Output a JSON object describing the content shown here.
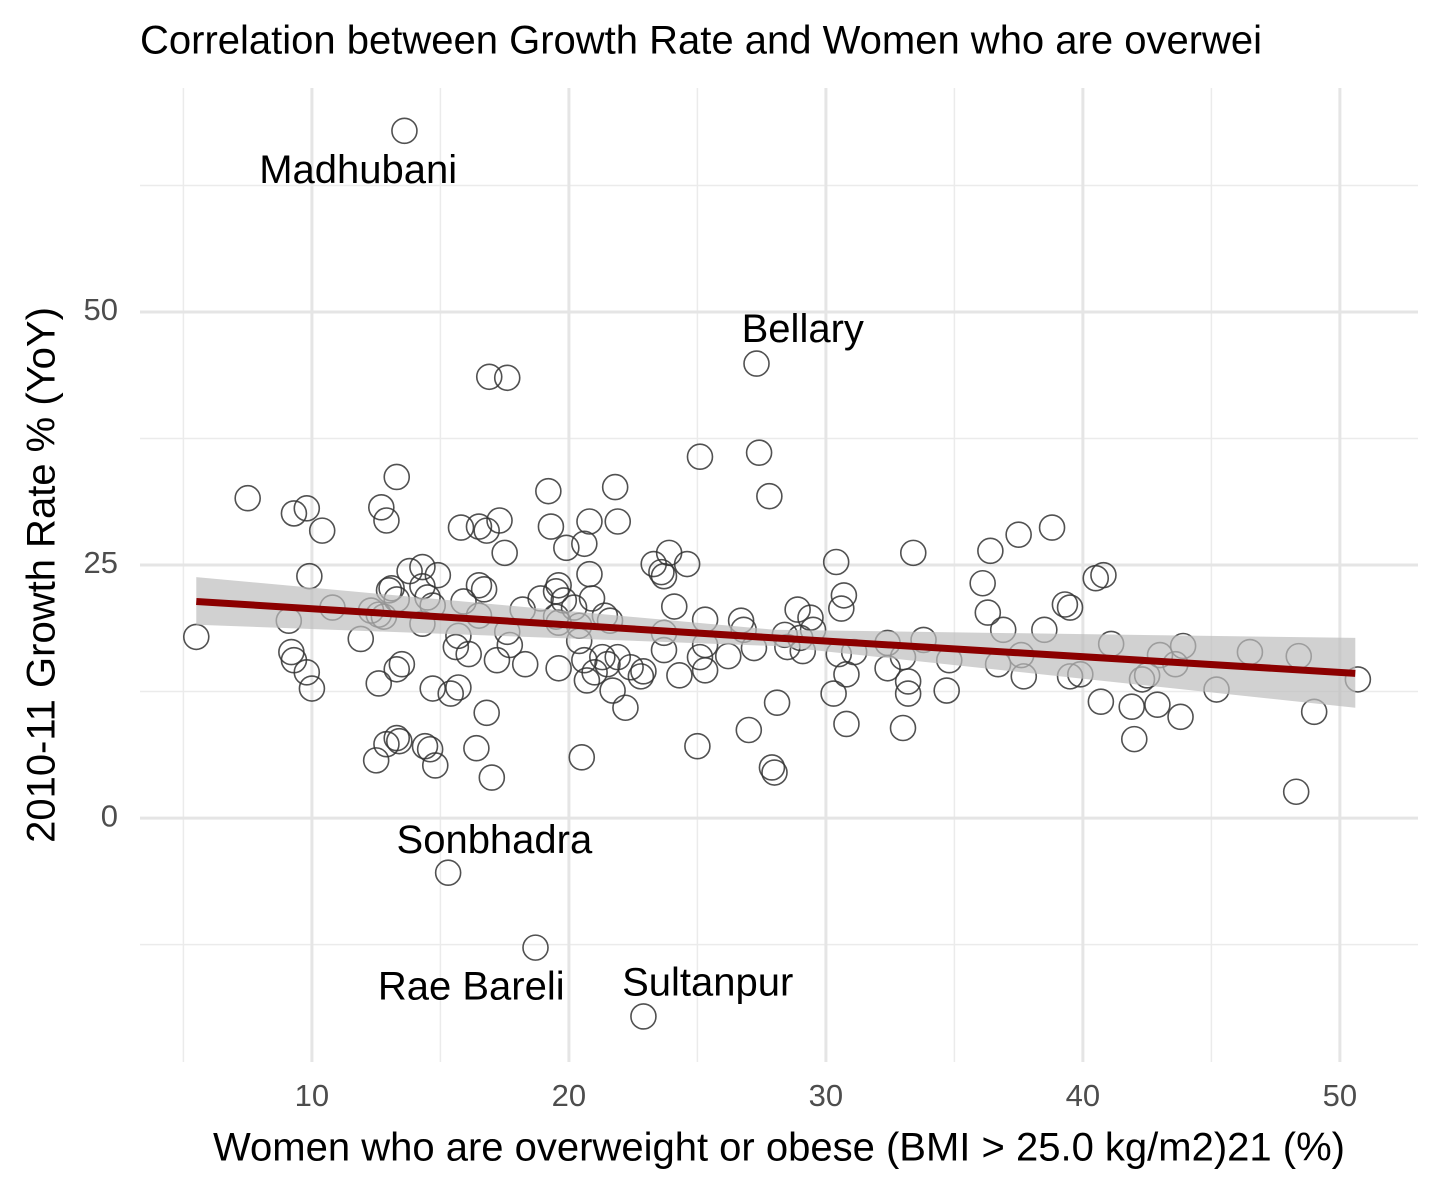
{
  "chart_data": {
    "type": "scatter",
    "title": "Correlation between Growth Rate and Women who are overwei",
    "x_label": "Women who are overweight or obese (BMI > 25.0 kg/m2)21 (%)",
    "y_label": "2010-11 Growth Rate % (YoY)",
    "xlim": [
      3.31,
      53.04
    ],
    "ylim": [
      -24.1,
      72.13
    ],
    "xticks": [
      10,
      20,
      30,
      40,
      50
    ],
    "yticks": [
      0,
      25,
      50
    ],
    "grid": true,
    "minor_grid": true,
    "point_color": "#333333",
    "trend_color": "#8b0000",
    "band_color": "#bebebe",
    "x": [
      13.6,
      16.9,
      17.6,
      27.3,
      25.1,
      27.4,
      27.8,
      7.5,
      9.3,
      9.8,
      10.4,
      12.7,
      12.9,
      13.3,
      19.2,
      21.8,
      19.3,
      20.8,
      21.9,
      15.8,
      16.5,
      16.8,
      17.3,
      17.5,
      19.9,
      20.6,
      30.4,
      33.4,
      36.4,
      37.5,
      38.8,
      36.1,
      36.3,
      36.9,
      40.5,
      40.8,
      39.3,
      39.5,
      38.5,
      41.1,
      37.6,
      37.7,
      36.7,
      39.5,
      39.9,
      40.7,
      41.9,
      42.0,
      42.3,
      42.5,
      42.9,
      43.0,
      43.6,
      43.9,
      43.8,
      45.2,
      46.5,
      48.4,
      48.3,
      49.0,
      50.7,
      5.5,
      9.1,
      9.2,
      9.3,
      9.8,
      10.0,
      9.9,
      10.8,
      11.9,
      12.3,
      12.6,
      12.8,
      13.0,
      13.1,
      13.3,
      12.6,
      13.5,
      13.3,
      12.5,
      12.9,
      13.3,
      13.4,
      14.4,
      14.6,
      14.8,
      14.7,
      15.4,
      15.7,
      13.8,
      14.3,
      14.9,
      14.3,
      14.5,
      14.7,
      14.3,
      15.9,
      16.5,
      16.7,
      15.7,
      15.6,
      16.1,
      16.5,
      17.2,
      17.6,
      17.7,
      18.2,
      18.3,
      16.8,
      16.4,
      17.0,
      15.3,
      18.7,
      22.9,
      18.9,
      19.5,
      19.6,
      19.8,
      20.2,
      19.5,
      19.6,
      19.6,
      20.4,
      20.8,
      20.9,
      21.4,
      21.6,
      20.4,
      20.6,
      20.5,
      20.7,
      21.0,
      21.3,
      21.5,
      21.7,
      21.9,
      22.2,
      22.4,
      22.8,
      22.9,
      23.3,
      23.6,
      23.9,
      23.7,
      24.6,
      24.1,
      23.7,
      23.7,
      24.3,
      25.3,
      25.3,
      25.1,
      25.3,
      25.0,
      26.2,
      26.7,
      26.8,
      27.2,
      27.0,
      28.1,
      27.9,
      28.0,
      28.4,
      28.5,
      29.0,
      28.9,
      29.1,
      29.4,
      29.5,
      30.3,
      30.6,
      30.7,
      30.5,
      30.8,
      30.8,
      31.1,
      32.4,
      32.4,
      33.0,
      33.2,
      33.2,
      33.0,
      33.8,
      34.8,
      34.7
    ],
    "y": [
      67.9,
      43.6,
      43.5,
      44.9,
      35.7,
      36.1,
      31.8,
      31.6,
      30.1,
      30.6,
      28.4,
      30.7,
      29.4,
      33.7,
      32.3,
      32.7,
      28.8,
      29.3,
      29.3,
      28.7,
      28.8,
      28.4,
      29.4,
      26.2,
      26.7,
      27.1,
      25.3,
      26.2,
      26.4,
      28.0,
      28.7,
      23.2,
      20.3,
      18.6,
      23.7,
      24.0,
      21.1,
      20.8,
      18.6,
      17.2,
      16.1,
      14.0,
      15.2,
      14.0,
      14.2,
      11.5,
      11.0,
      7.8,
      13.7,
      14.1,
      11.2,
      16.1,
      15.2,
      17.0,
      10.0,
      12.7,
      16.4,
      16.0,
      2.6,
      10.5,
      13.7,
      17.9,
      19.5,
      16.4,
      15.6,
      14.4,
      12.8,
      23.9,
      20.8,
      17.7,
      20.5,
      20.1,
      19.9,
      22.5,
      22.7,
      21.6,
      13.3,
      15.2,
      14.7,
      5.7,
      7.3,
      7.9,
      7.6,
      7.1,
      6.8,
      5.2,
      12.8,
      12.3,
      12.9,
      24.4,
      24.8,
      24.0,
      22.9,
      21.8,
      21.0,
      19.2,
      21.4,
      23.0,
      22.6,
      18.0,
      16.9,
      16.2,
      20.0,
      15.6,
      18.4,
      17.1,
      20.6,
      15.2,
      10.4,
      6.9,
      4.0,
      -5.4,
      -12.8,
      -19.6,
      21.7,
      22.4,
      23.0,
      21.5,
      20.8,
      19.9,
      19.3,
      14.8,
      19.0,
      24.1,
      21.7,
      20.0,
      19.5,
      17.5,
      15.6,
      6.0,
      13.6,
      14.4,
      15.9,
      15.2,
      12.6,
      15.9,
      10.9,
      14.9,
      14.0,
      14.5,
      25.1,
      24.3,
      26.2,
      23.9,
      25.1,
      20.9,
      18.3,
      16.6,
      14.1,
      19.6,
      17.1,
      15.9,
      14.6,
      7.1,
      16.0,
      19.5,
      18.6,
      16.8,
      8.7,
      11.4,
      5.0,
      4.5,
      18.1,
      16.9,
      17.8,
      20.6,
      16.5,
      19.8,
      18.6,
      12.3,
      20.7,
      22.0,
      16.2,
      14.2,
      9.3,
      16.4,
      17.3,
      14.8,
      15.9,
      13.5,
      12.3,
      8.9,
      17.6,
      15.6,
      12.6
    ],
    "trend": {
      "x": [
        5.5,
        28,
        50.6
      ],
      "y": [
        21.4,
        17.8,
        14.3
      ],
      "lower": [
        19.1,
        17.0,
        10.9
      ],
      "upper": [
        23.8,
        18.6,
        17.8
      ]
    },
    "annotations": [
      {
        "text": "Madhubani",
        "x": 11.8,
        "y": 63.8
      },
      {
        "text": "Bellary",
        "x": 29.1,
        "y": 48.1
      },
      {
        "text": "Sonbhadra",
        "x": 17.1,
        "y": -2.4
      },
      {
        "text": "Rae Bareli",
        "x": 16.2,
        "y": -16.9
      },
      {
        "text": "Sultanpur",
        "x": 25.4,
        "y": -16.5
      }
    ]
  }
}
